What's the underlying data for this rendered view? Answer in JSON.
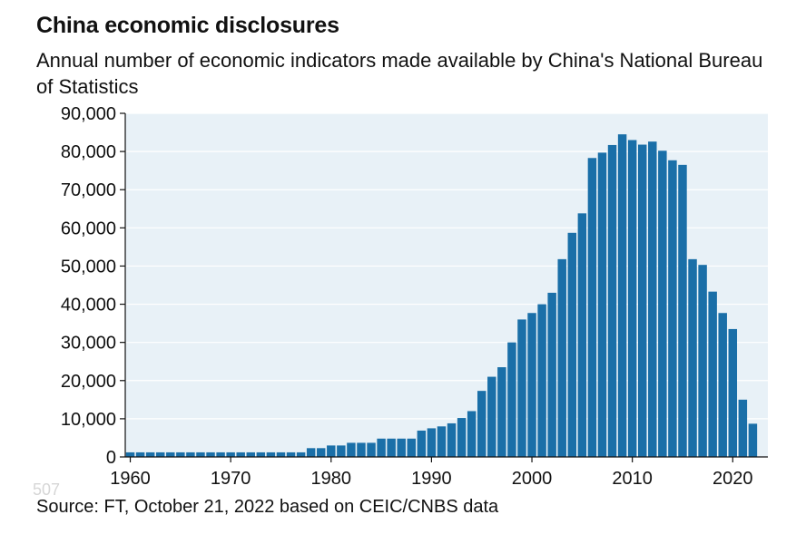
{
  "chart_data": {
    "type": "bar",
    "title": "China economic disclosures",
    "subtitle": "Annual number of economic indicators made available by China's National Bureau of Statistics",
    "xlabel": "",
    "ylabel": "",
    "source": "Source: FT, October 21, 2022 based on CEIC/CNBS data",
    "watermark": "507",
    "ylim": [
      0,
      90000
    ],
    "xlim": [
      1960,
      2023
    ],
    "y_ticks": [
      "0",
      "10,000",
      "20,000",
      "30,000",
      "40,000",
      "50,000",
      "60,000",
      "70,000",
      "80,000",
      "90,000"
    ],
    "x_ticks": [
      "1960",
      "1970",
      "1980",
      "1990",
      "2000",
      "2010",
      "2020"
    ],
    "grid": true,
    "colors": {
      "bar": "#1a6fa8",
      "plot_bg": "#e8f1f7",
      "grid": "#ffffff",
      "axis": "#111111"
    },
    "categories": [
      1960,
      1961,
      1962,
      1963,
      1964,
      1965,
      1966,
      1967,
      1968,
      1969,
      1970,
      1971,
      1972,
      1973,
      1974,
      1975,
      1976,
      1977,
      1978,
      1979,
      1980,
      1981,
      1982,
      1983,
      1984,
      1985,
      1986,
      1987,
      1988,
      1989,
      1990,
      1991,
      1992,
      1993,
      1994,
      1995,
      1996,
      1997,
      1998,
      1999,
      2000,
      2001,
      2002,
      2003,
      2004,
      2005,
      2006,
      2007,
      2008,
      2009,
      2010,
      2011,
      2012,
      2013,
      2014,
      2015,
      2016,
      2017,
      2018,
      2019,
      2020,
      2021,
      2022,
      2023
    ],
    "values": [
      1200,
      1200,
      1200,
      1200,
      1200,
      1200,
      1200,
      1200,
      1200,
      1200,
      1200,
      1200,
      1200,
      1200,
      1200,
      1200,
      1200,
      1200,
      2300,
      2300,
      3000,
      3000,
      3700,
      3700,
      3700,
      4800,
      4800,
      4800,
      4800,
      6900,
      7500,
      8000,
      8800,
      10200,
      12000,
      17300,
      21000,
      23500,
      30000,
      36000,
      37700,
      40000,
      43000,
      51800,
      58700,
      63800,
      78300,
      79700,
      81700,
      84500,
      83000,
      81800,
      82600,
      80200,
      77700,
      76500,
      51800,
      50300,
      43300,
      37700,
      33500,
      15000,
      8700,
      0
    ]
  }
}
